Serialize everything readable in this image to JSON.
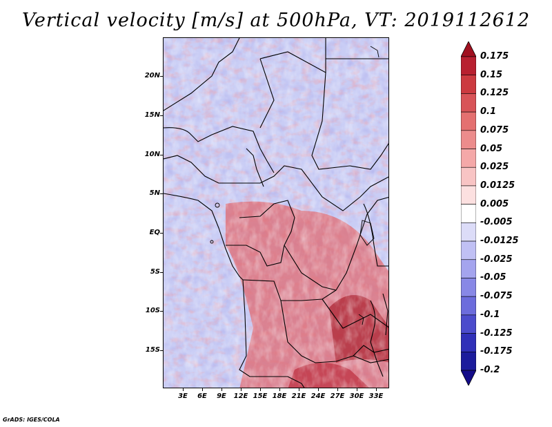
{
  "title": "Vertical velocity [m/s] at 500hPa, VT: 2019112612",
  "footer": "GrADS: IGES/COLA",
  "lat_labels": [
    "20N",
    "15N",
    "10N",
    "5N",
    "EQ",
    "5S",
    "10S",
    "15S"
  ],
  "lon_labels": [
    "3E",
    "6E",
    "9E",
    "12E",
    "15E",
    "18E",
    "21E",
    "24E",
    "27E",
    "30E",
    "33E"
  ],
  "colorbar": {
    "labels": [
      "0.175",
      "0.15",
      "0.125",
      "0.1",
      "0.075",
      "0.05",
      "0.025",
      "0.0125",
      "0.005",
      "-0.005",
      "-0.0125",
      "-0.025",
      "-0.05",
      "-0.075",
      "-0.1",
      "-0.125",
      "-0.175",
      "-0.2"
    ],
    "colors": [
      "#a01020",
      "#b82030",
      "#cc3a40",
      "#d85458",
      "#e47070",
      "#ec8c8c",
      "#f4a8a8",
      "#f8c4c4",
      "#fce0e0",
      "#ffffff",
      "#dcdcf8",
      "#c0c0f4",
      "#a4a4ee",
      "#8888e6",
      "#6c6cdc",
      "#4c4ccc",
      "#3030b8",
      "#1c1c9c",
      "#140c88"
    ]
  }
}
